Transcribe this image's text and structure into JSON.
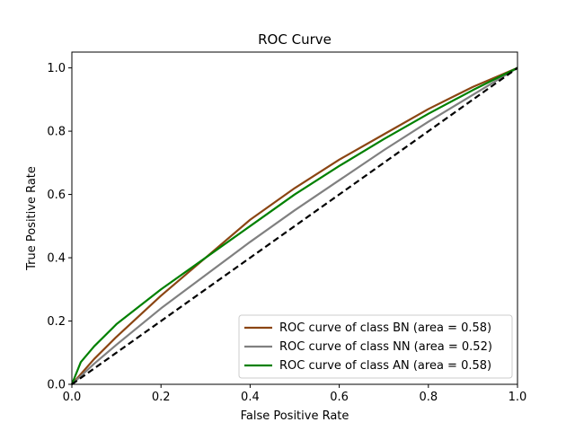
{
  "chart_data": {
    "type": "line",
    "title": "ROC Curve",
    "xlabel": "False Positive Rate",
    "ylabel": "True Positive Rate",
    "xlim": [
      0.0,
      1.0
    ],
    "ylim": [
      0.0,
      1.05
    ],
    "x_ticks": [
      "0.0",
      "0.2",
      "0.4",
      "0.6",
      "0.8",
      "1.0"
    ],
    "y_ticks": [
      "0.0",
      "0.2",
      "0.4",
      "0.6",
      "0.8",
      "1.0"
    ],
    "grid": false,
    "legend_position": "lower-right",
    "series": [
      {
        "name": "ROC curve of class BN (area = 0.58)",
        "color": "#8B4513",
        "x": [
          0.0,
          0.05,
          0.1,
          0.2,
          0.3,
          0.4,
          0.5,
          0.6,
          0.7,
          0.8,
          0.9,
          1.0
        ],
        "y": [
          0.0,
          0.08,
          0.15,
          0.28,
          0.4,
          0.52,
          0.62,
          0.71,
          0.79,
          0.87,
          0.94,
          1.0
        ]
      },
      {
        "name": "ROC curve of class NN (area = 0.52)",
        "color": "#808080",
        "x": [
          0.0,
          0.05,
          0.1,
          0.2,
          0.3,
          0.4,
          0.5,
          0.6,
          0.7,
          0.8,
          0.9,
          1.0
        ],
        "y": [
          0.0,
          0.065,
          0.125,
          0.24,
          0.345,
          0.45,
          0.55,
          0.645,
          0.74,
          0.83,
          0.915,
          1.0
        ]
      },
      {
        "name": "ROC curve of class AN (area = 0.58)",
        "color": "#008000",
        "x": [
          0.0,
          0.02,
          0.05,
          0.1,
          0.2,
          0.3,
          0.4,
          0.5,
          0.6,
          0.7,
          0.8,
          0.9,
          1.0
        ],
        "y": [
          0.0,
          0.07,
          0.12,
          0.19,
          0.3,
          0.4,
          0.5,
          0.6,
          0.69,
          0.775,
          0.855,
          0.93,
          1.0
        ]
      },
      {
        "name": "",
        "color": "#000000",
        "dashed": true,
        "x": [
          0.0,
          1.0
        ],
        "y": [
          0.0,
          1.0
        ]
      }
    ]
  }
}
